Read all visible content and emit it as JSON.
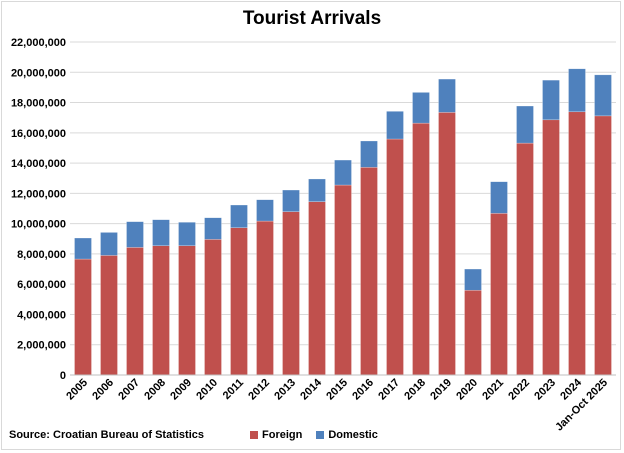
{
  "chart_data": {
    "type": "bar",
    "stacked": true,
    "title": "Tourist Arrivals",
    "xlabel": "",
    "ylabel": "",
    "ylim": [
      0,
      22000000
    ],
    "yticks": [
      0,
      2000000,
      4000000,
      6000000,
      8000000,
      10000000,
      12000000,
      14000000,
      16000000,
      18000000,
      20000000,
      22000000
    ],
    "ytick_labels": [
      "0",
      "2,000,000",
      "4,000,000",
      "6,000,000",
      "8,000,000",
      "10,000,000",
      "12,000,000",
      "14,000,000",
      "16,000,000",
      "18,000,000",
      "20,000,000",
      "22,000,000"
    ],
    "grid": true,
    "legend_position": "bottom",
    "categories": [
      "2005",
      "2006",
      "2007",
      "2008",
      "2009",
      "2010",
      "2011",
      "2012",
      "2013",
      "2014",
      "2015",
      "2016",
      "2017",
      "2018",
      "2019",
      "2020",
      "2021",
      "2022",
      "2023",
      "2024",
      "Jan-Oct 2025"
    ],
    "series": [
      {
        "name": "Foreign",
        "color": "#c0504d",
        "values": [
          7660000,
          7900000,
          8430000,
          8540000,
          8540000,
          8960000,
          9730000,
          10170000,
          10790000,
          11450000,
          12550000,
          13720000,
          15590000,
          16640000,
          17350000,
          5600000,
          10680000,
          15320000,
          16860000,
          17390000,
          17120000
        ]
      },
      {
        "name": "Domestic",
        "color": "#4f81bd",
        "values": [
          1390000,
          1520000,
          1700000,
          1720000,
          1550000,
          1430000,
          1500000,
          1410000,
          1430000,
          1500000,
          1650000,
          1740000,
          1830000,
          2030000,
          2200000,
          1400000,
          2090000,
          2450000,
          2620000,
          2840000,
          2710000
        ]
      }
    ],
    "source": "Source:  Croatian Bureau of Statistics"
  }
}
